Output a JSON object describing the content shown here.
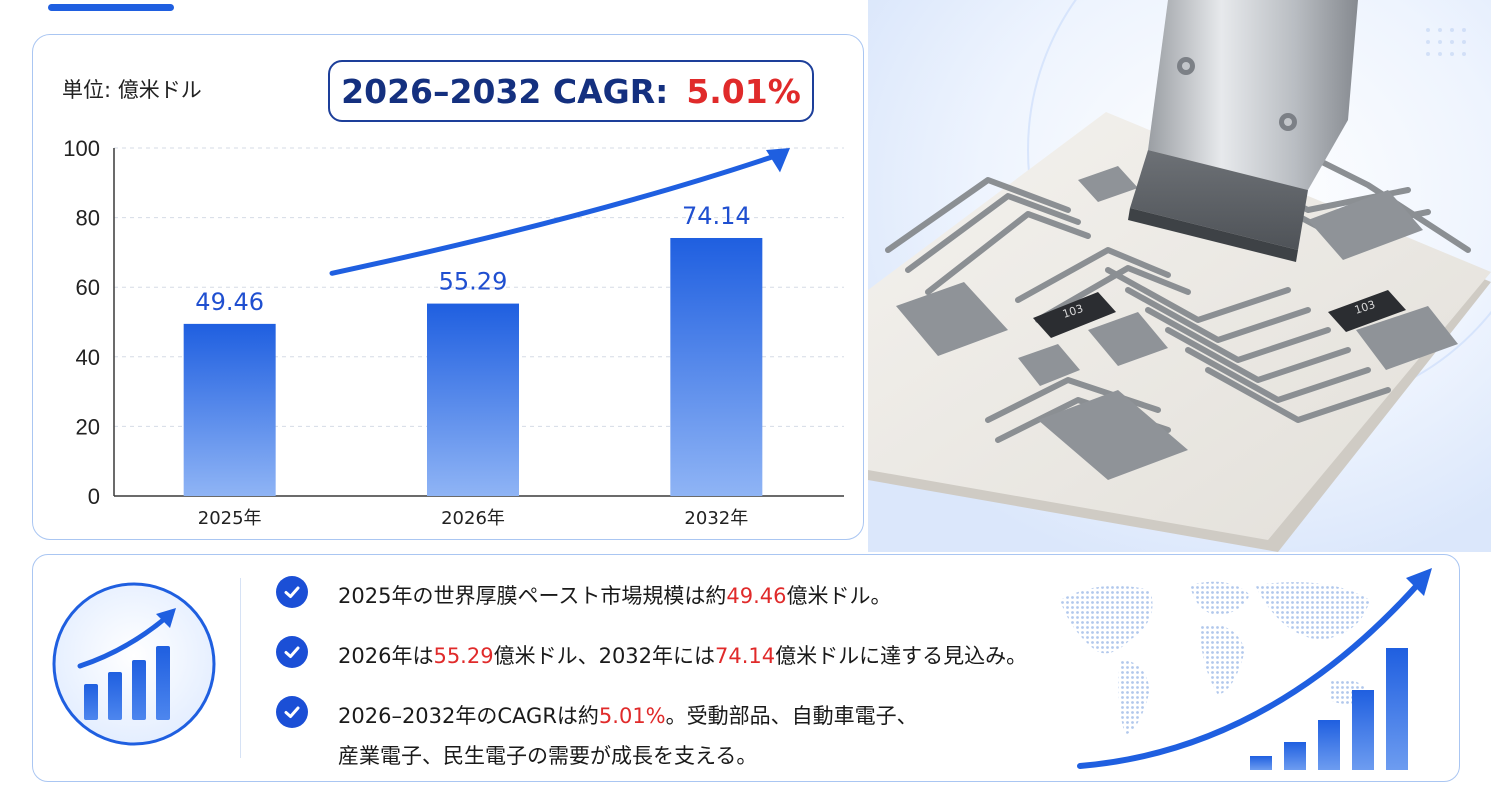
{
  "chart_data": {
    "type": "bar",
    "unit_label": "単位: 億米ドル",
    "categories": [
      "2025年",
      "2026年",
      "2032年"
    ],
    "values": [
      49.46,
      55.29,
      74.14
    ],
    "value_labels": [
      "49.46",
      "55.29",
      "74.14"
    ],
    "ylim": [
      0,
      100
    ],
    "yticks": [
      0,
      20,
      40,
      60,
      80,
      100
    ],
    "grid": true,
    "bar_color_top": "#1f5fe0",
    "bar_color_bottom": "#8fb4f5",
    "label_color": "#1f4fd0",
    "trend_arrow": true
  },
  "cagr": {
    "label": "2026–2032 CAGR:",
    "value": "5.01%"
  },
  "summary": {
    "points": [
      [
        {
          "t": "2025年の世界厚膜ペースト市場規模は約"
        },
        {
          "t": "49.46",
          "hl": true
        },
        {
          "t": "億米ドル。"
        }
      ],
      [
        {
          "t": "2026年は"
        },
        {
          "t": "55.29",
          "hl": true
        },
        {
          "t": "億米ドル、2032年には"
        },
        {
          "t": "74.14",
          "hl": true
        },
        {
          "t": "億米ドルに達する見込み。"
        }
      ],
      [
        {
          "t": "2026–2032年のCAGRは約"
        },
        {
          "t": "5.01%",
          "hl": true
        },
        {
          "t": "。受動部品、自動車電子、"
        },
        {
          "br": true
        },
        {
          "t": "産業電子、民生電子の需要が成長を支える。"
        }
      ]
    ]
  },
  "photo": {
    "resistor_labels": [
      "103",
      "103"
    ]
  },
  "colors": {
    "accent": "#1f5fe0",
    "highlight": "#e02a2a",
    "navy": "#14307f"
  },
  "icons": {
    "check": "check-circle-icon",
    "growth": "growth-chart-icon",
    "world": "world-map-icon"
  }
}
